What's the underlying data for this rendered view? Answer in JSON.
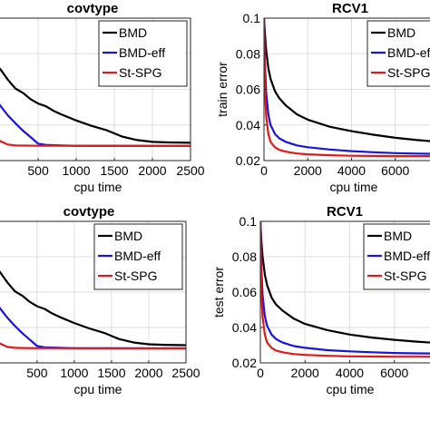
{
  "chart_data": [
    {
      "type": "line",
      "title": "covtype",
      "xlabel": "cpu time",
      "ylabel": "",
      "xlim": [
        -120,
        2500
      ],
      "ylim": [
        0.02,
        0.1
      ],
      "xticks": [
        500,
        1000,
        1500,
        2000,
        2500
      ],
      "xticklabels": [
        "500",
        "1000",
        "1500",
        "2000",
        "2500"
      ],
      "grid": true,
      "legend": "top-right",
      "series": [
        {
          "name": "BMD",
          "color": "#000000",
          "x": [
            -120,
            0,
            100,
            200,
            300,
            400,
            500,
            600,
            700,
            800,
            1000,
            1200,
            1400,
            1600,
            1800,
            2000,
            2200,
            2500
          ],
          "y": [
            0.0745,
            0.0715,
            0.0655,
            0.0605,
            0.058,
            0.0545,
            0.052,
            0.0505,
            0.048,
            0.046,
            0.0425,
            0.0395,
            0.037,
            0.0335,
            0.0315,
            0.0305,
            0.0302,
            0.03
          ]
        },
        {
          "name": "BMD-eff",
          "color": "#1515dd",
          "x": [
            -120,
            0,
            100,
            200,
            300,
            400,
            500,
            600,
            800,
            1000,
            1500,
            2000,
            2500
          ],
          "y": [
            0.058,
            0.051,
            0.0455,
            0.041,
            0.0368,
            0.0332,
            0.0295,
            0.0288,
            0.0285,
            0.0283,
            0.0283,
            0.0282,
            0.0282
          ]
        },
        {
          "name": "St-SPG",
          "color": "#e11919",
          "x": [
            -120,
            0,
            100,
            200,
            300,
            500,
            800,
            1200,
            1600,
            2000,
            2500
          ],
          "y": [
            0.034,
            0.031,
            0.029,
            0.0285,
            0.0284,
            0.0283,
            0.0283,
            0.0282,
            0.0282,
            0.0282,
            0.0282
          ]
        }
      ]
    },
    {
      "type": "line",
      "title": "RCV1",
      "xlabel": "cpu time",
      "ylabel": "train error",
      "xlim": [
        0,
        8000
      ],
      "ylim": [
        0.02,
        0.1
      ],
      "xticks": [
        0,
        2000,
        4000,
        6000
      ],
      "xticklabels": [
        "0",
        "2000",
        "4000",
        "6000"
      ],
      "yticks": [
        0.02,
        0.04,
        0.06,
        0.08,
        0.1
      ],
      "yticklabels": [
        "0.02",
        "0.04",
        "0.06",
        "0.08",
        "0.1"
      ],
      "grid": true,
      "legend": "top-right",
      "series": [
        {
          "name": "BMD",
          "color": "#000000",
          "x": [
            0,
            50,
            100,
            200,
            300,
            500,
            700,
            1000,
            1500,
            2000,
            3000,
            4000,
            5000,
            6000,
            7000,
            8000
          ],
          "y": [
            0.1,
            0.09,
            0.082,
            0.072,
            0.066,
            0.059,
            0.055,
            0.051,
            0.046,
            0.043,
            0.039,
            0.0365,
            0.0345,
            0.0328,
            0.0315,
            0.0305
          ]
        },
        {
          "name": "BMD-eff",
          "color": "#1515dd",
          "x": [
            0,
            50,
            100,
            200,
            300,
            500,
            700,
            1000,
            1500,
            2000,
            3000,
            4000,
            5000,
            6000,
            7000,
            8000
          ],
          "y": [
            0.1,
            0.072,
            0.058,
            0.046,
            0.04,
            0.035,
            0.0325,
            0.0305,
            0.0285,
            0.0275,
            0.0262,
            0.0253,
            0.0247,
            0.0242,
            0.0239,
            0.0237
          ]
        },
        {
          "name": "St-SPG",
          "color": "#e11919",
          "x": [
            0,
            50,
            100,
            200,
            300,
            500,
            700,
            1000,
            1500,
            2000,
            3000,
            4000,
            5000,
            6000,
            7000,
            8000
          ],
          "y": [
            0.1,
            0.058,
            0.045,
            0.035,
            0.0305,
            0.0275,
            0.026,
            0.025,
            0.024,
            0.0235,
            0.023,
            0.0227,
            0.0226,
            0.0225,
            0.0225,
            0.0225
          ]
        }
      ]
    },
    {
      "type": "line",
      "title": "covtype",
      "xlabel": "cpu time",
      "ylabel": "",
      "xlim": [
        -120,
        2500
      ],
      "ylim": [
        0.02,
        0.1
      ],
      "xticks": [
        500,
        1000,
        1500,
        2000,
        2500
      ],
      "xticklabels": [
        "500",
        "1000",
        "1500",
        "2000",
        "2500"
      ],
      "grid": true,
      "legend": "top-right",
      "series": [
        {
          "name": "BMD",
          "color": "#000000",
          "x": [
            -120,
            0,
            100,
            200,
            300,
            400,
            500,
            600,
            700,
            800,
            1000,
            1200,
            1400,
            1600,
            1800,
            2000,
            2200,
            2500
          ],
          "y": [
            0.0745,
            0.0715,
            0.0655,
            0.0605,
            0.058,
            0.0545,
            0.052,
            0.0505,
            0.048,
            0.046,
            0.0425,
            0.0395,
            0.037,
            0.0335,
            0.0315,
            0.0305,
            0.0302,
            0.03
          ]
        },
        {
          "name": "BMD-eff",
          "color": "#1515dd",
          "x": [
            -120,
            0,
            100,
            200,
            300,
            400,
            500,
            600,
            800,
            1000,
            1500,
            2000,
            2500
          ],
          "y": [
            0.058,
            0.051,
            0.0455,
            0.041,
            0.0368,
            0.0332,
            0.0295,
            0.0288,
            0.0285,
            0.0283,
            0.0283,
            0.0282,
            0.0282
          ]
        },
        {
          "name": "St-SPG",
          "color": "#e11919",
          "x": [
            -120,
            0,
            100,
            200,
            300,
            500,
            800,
            1200,
            1600,
            2000,
            2500
          ],
          "y": [
            0.034,
            0.031,
            0.029,
            0.0285,
            0.0284,
            0.0283,
            0.0283,
            0.0282,
            0.0282,
            0.0282,
            0.0282
          ]
        }
      ]
    },
    {
      "type": "line",
      "title": "RCV1",
      "xlabel": "cpu time",
      "ylabel": "test error",
      "xlim": [
        0,
        8000
      ],
      "ylim": [
        0.02,
        0.1
      ],
      "xticks": [
        0,
        2000,
        4000,
        6000
      ],
      "xticklabels": [
        "0",
        "2000",
        "4000",
        "6000"
      ],
      "yticks": [
        0.02,
        0.04,
        0.06,
        0.08,
        0.1
      ],
      "yticklabels": [
        "0.02",
        "0.04",
        "0.06",
        "0.08",
        "0.1"
      ],
      "grid": true,
      "legend": "top-right",
      "series": [
        {
          "name": "BMD",
          "color": "#000000",
          "x": [
            0,
            50,
            100,
            200,
            300,
            500,
            700,
            1000,
            1500,
            2000,
            3000,
            4000,
            5000,
            6000,
            7000,
            8000
          ],
          "y": [
            0.1,
            0.088,
            0.08,
            0.07,
            0.064,
            0.057,
            0.053,
            0.0495,
            0.045,
            0.042,
            0.0385,
            0.036,
            0.0343,
            0.033,
            0.032,
            0.0312
          ]
        },
        {
          "name": "BMD-eff",
          "color": "#1515dd",
          "x": [
            0,
            50,
            100,
            200,
            300,
            500,
            700,
            1000,
            1500,
            2000,
            3000,
            4000,
            5000,
            6000,
            7000,
            8000
          ],
          "y": [
            0.1,
            0.072,
            0.058,
            0.0465,
            0.041,
            0.036,
            0.0335,
            0.0315,
            0.0295,
            0.0285,
            0.0272,
            0.0265,
            0.026,
            0.0256,
            0.0254,
            0.0253
          ]
        },
        {
          "name": "St-SPG",
          "color": "#e11919",
          "x": [
            0,
            50,
            100,
            200,
            300,
            500,
            700,
            1000,
            1500,
            2000,
            3000,
            4000,
            5000,
            6000,
            7000,
            8000
          ],
          "y": [
            0.1,
            0.058,
            0.046,
            0.036,
            0.0315,
            0.0285,
            0.027,
            0.026,
            0.025,
            0.0245,
            0.024,
            0.0237,
            0.0236,
            0.0235,
            0.0235,
            0.0235
          ]
        }
      ]
    }
  ]
}
